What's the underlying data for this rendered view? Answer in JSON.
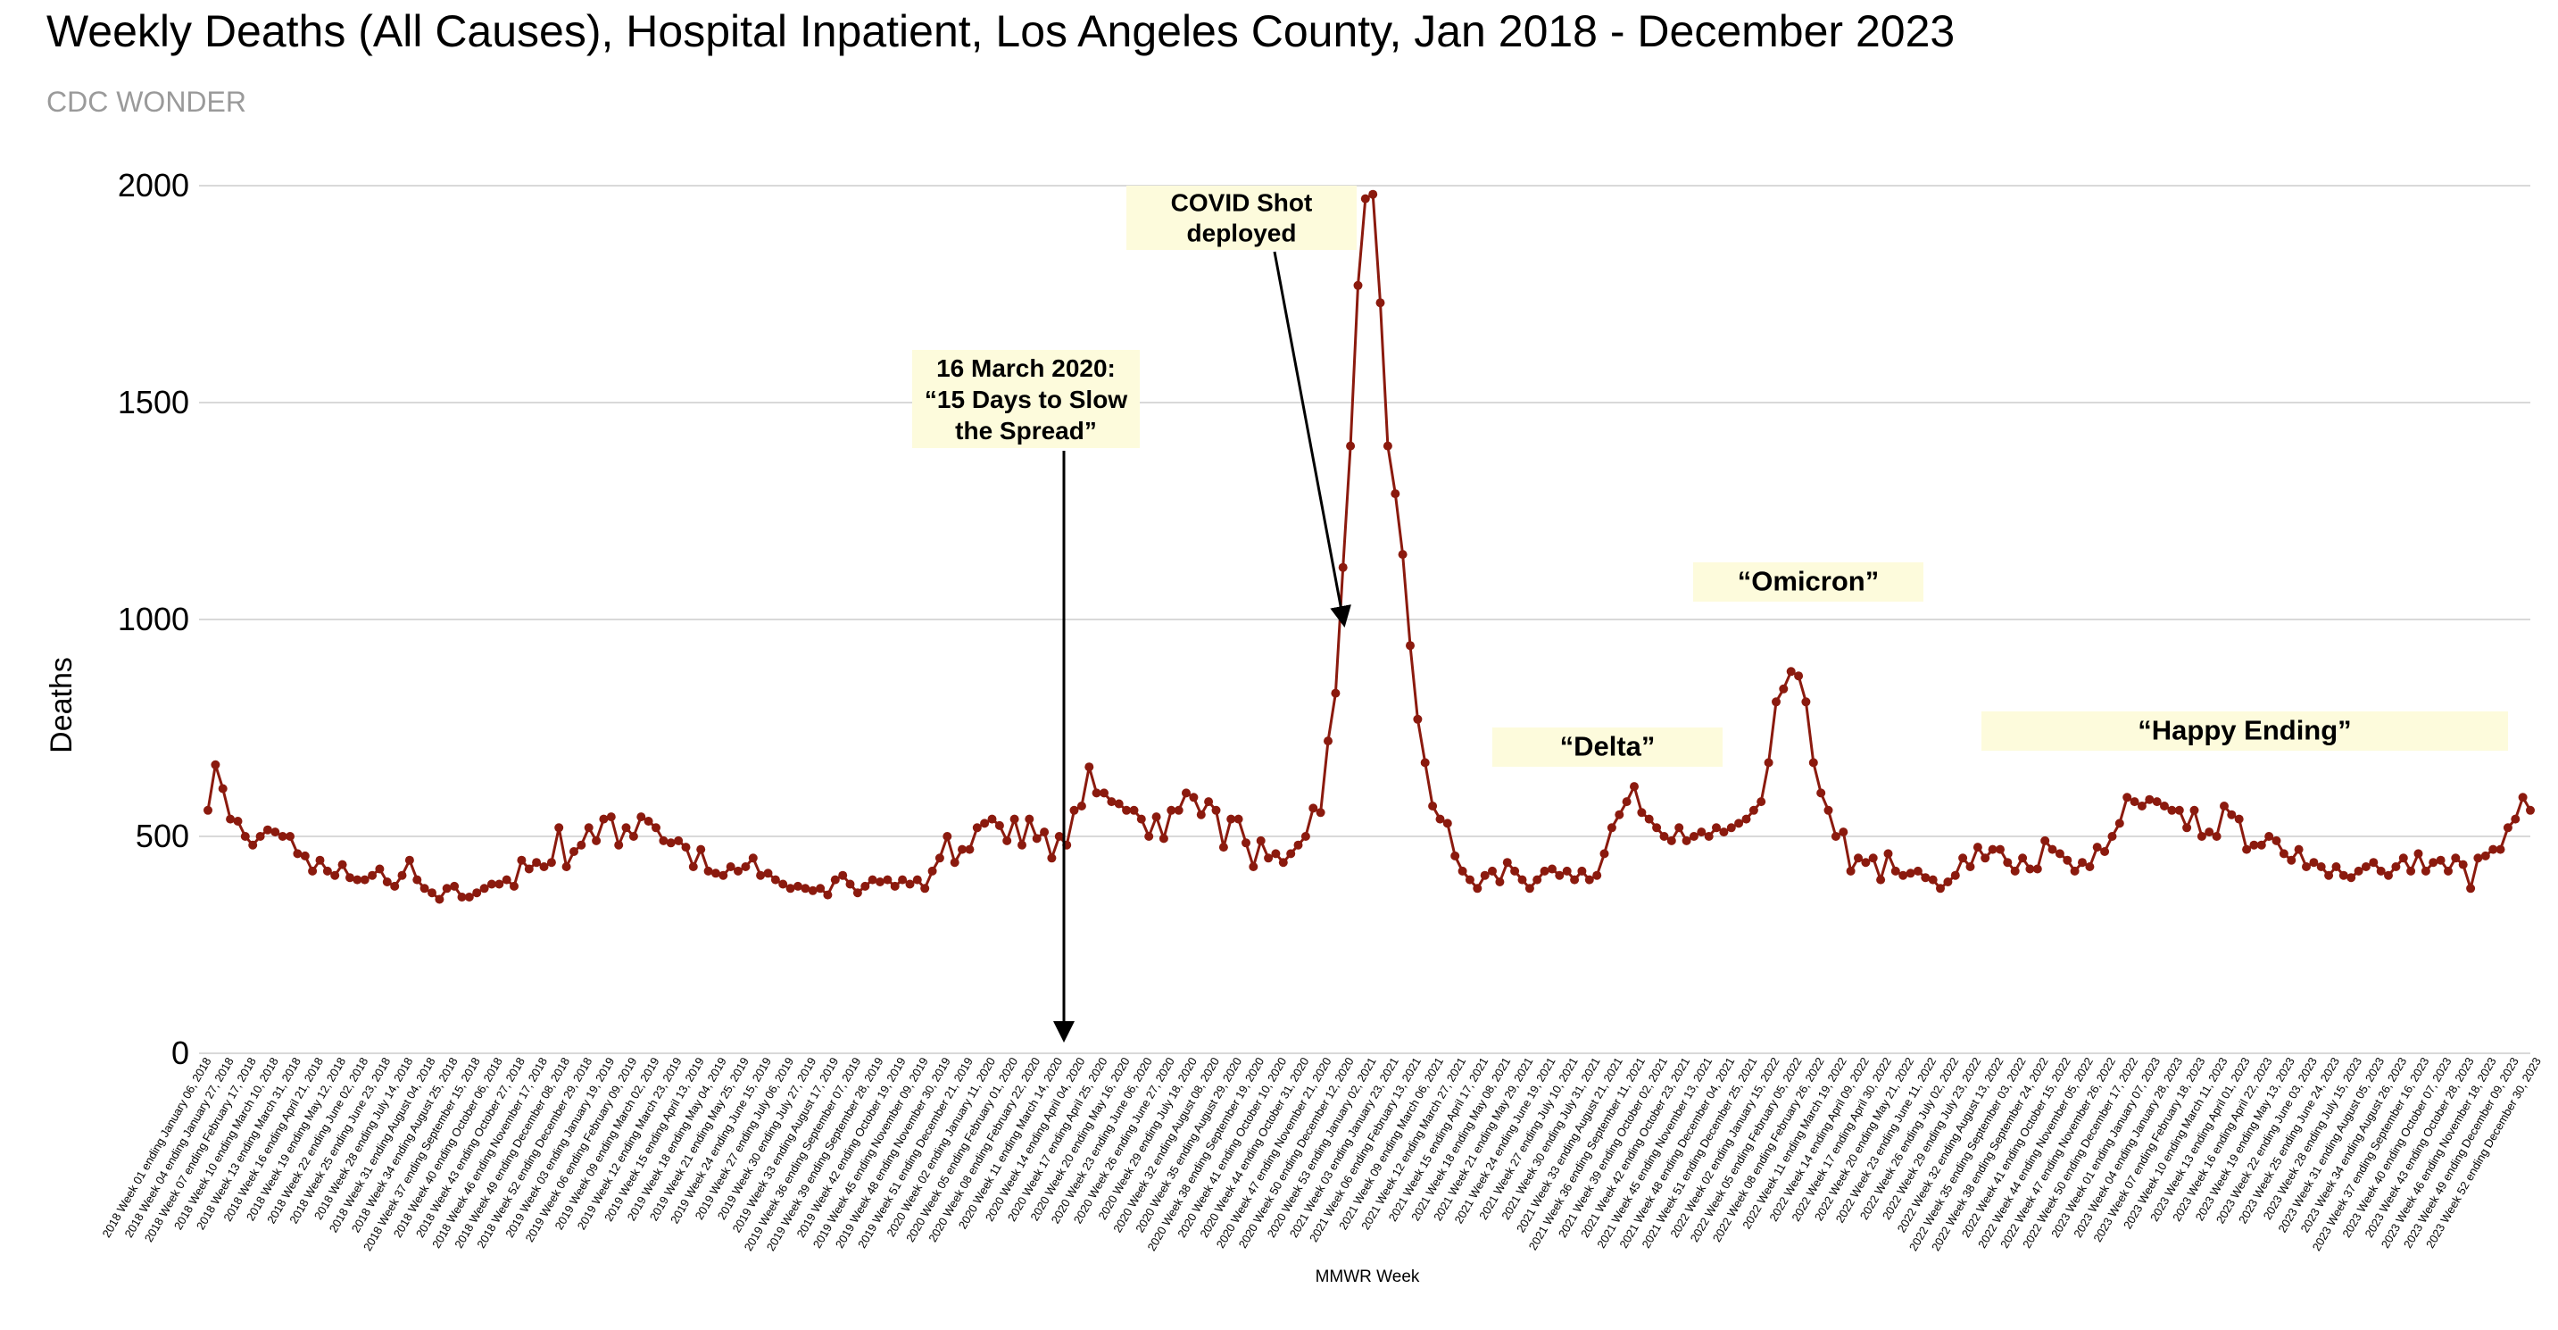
{
  "chart_data": {
    "type": "line",
    "title": "Weekly Deaths (All Causes), Hospital Inpatient, Los Angeles County, Jan 2018 - December 2023",
    "subtitle": "CDC WONDER",
    "xlabel": "MMWR Week",
    "ylabel": "Deaths",
    "ylim": [
      0,
      2000
    ],
    "yticks": [
      0,
      500,
      1000,
      1500,
      2000
    ],
    "grid": true,
    "colors": {
      "line": "#8b1a0e",
      "marker": "#8b1a0e",
      "annotation_bg": "#fdfbdc",
      "grid": "#d9d9d9"
    },
    "x_tick_labels": [
      "2018 Week 01 ending January 06, 2018",
      "2018 Week 04 ending January 27, 2018",
      "2018 Week 07 ending February 17, 2018",
      "2018 Week 10 ending March 10, 2018",
      "2018 Week 13 ending March 31, 2018",
      "2018 Week 16 ending April 21, 2018",
      "2018 Week 19 ending May 12, 2018",
      "2018 Week 22 ending June 02, 2018",
      "2018 Week 25 ending June 23, 2018",
      "2018 Week 28 ending July 14, 2018",
      "2018 Week 31 ending August 04, 2018",
      "2018 Week 34 ending August 25, 2018",
      "2018 Week 37 ending September 15, 2018",
      "2018 Week 40 ending October 06, 2018",
      "2018 Week 43 ending October 27, 2018",
      "2018 Week 46 ending November 17, 2018",
      "2018 Week 49 ending December 08, 2018",
      "2018 Week 52 ending December 29, 2018",
      "2019 Week 03 ending January 19, 2019",
      "2019 Week 06 ending February 09, 2019",
      "2019 Week 09 ending March 02, 2019",
      "2019 Week 12 ending March 23, 2019",
      "2019 Week 15 ending April 13, 2019",
      "2019 Week 18 ending May 04, 2019",
      "2019 Week 21 ending May 25, 2019",
      "2019 Week 24 ending June 15, 2019",
      "2019 Week 27 ending July 06, 2019",
      "2019 Week 30 ending July 27, 2019",
      "2019 Week 33 ending August 17, 2019",
      "2019 Week 36 ending September 07, 2019",
      "2019 Week 39 ending September 28, 2019",
      "2019 Week 42 ending October 19, 2019",
      "2019 Week 45 ending November 09, 2019",
      "2019 Week 48 ending November 30, 2019",
      "2019 Week 51 ending December 21, 2019",
      "2020 Week 02 ending January 11, 2020",
      "2020 Week 05 ending February 01, 2020",
      "2020 Week 08 ending February 22, 2020",
      "2020 Week 11 ending March 14, 2020",
      "2020 Week 14 ending April 04, 2020",
      "2020 Week 17 ending April 25, 2020",
      "2020 Week 20 ending May 16, 2020",
      "2020 Week 23 ending June 06, 2020",
      "2020 Week 26 ending June 27, 2020",
      "2020 Week 29 ending July 18, 2020",
      "2020 Week 32 ending August 08, 2020",
      "2020 Week 35 ending August 29, 2020",
      "2020 Week 38 ending September 19, 2020",
      "2020 Week 41 ending October 10, 2020",
      "2020 Week 44 ending October 31, 2020",
      "2020 Week 47 ending November 21, 2020",
      "2020 Week 50 ending December 12, 2020",
      "2020 Week 53 ending January 02, 2021",
      "2021 Week 03 ending January 23, 2021",
      "2021 Week 06 ending February 13, 2021",
      "2021 Week 09 ending March 06, 2021",
      "2021 Week 12 ending March 27, 2021",
      "2021 Week 15 ending April 17, 2021",
      "2021 Week 18 ending May 08, 2021",
      "2021 Week 21 ending May 29, 2021",
      "2021 Week 24 ending June 19, 2021",
      "2021 Week 27 ending July 10, 2021",
      "2021 Week 30 ending July 31, 2021",
      "2021 Week 33 ending August 21, 2021",
      "2021 Week 36 ending September 11, 2021",
      "2021 Week 39 ending October 02, 2021",
      "2021 Week 42 ending October 23, 2021",
      "2021 Week 45 ending November 13, 2021",
      "2021 Week 48 ending December 04, 2021",
      "2021 Week 51 ending December 25, 2021",
      "2022 Week 02 ending January 15, 2022",
      "2022 Week 05 ending February 05, 2022",
      "2022 Week 08 ending February 26, 2022",
      "2022 Week 11 ending March 19, 2022",
      "2022 Week 14 ending April 09, 2022",
      "2022 Week 17 ending April 30, 2022",
      "2022 Week 20 ending May 21, 2022",
      "2022 Week 23 ending June 11, 2022",
      "2022 Week 26 ending July 02, 2022",
      "2022 Week 29 ending July 23, 2022",
      "2022 Week 32 ending August 13, 2022",
      "2022 Week 35 ending September 03, 2022",
      "2022 Week 38 ending September 24, 2022",
      "2022 Week 41 ending October 15, 2022",
      "2022 Week 44 ending November 05, 2022",
      "2022 Week 47 ending November 26, 2022",
      "2022 Week 50 ending December 17, 2022",
      "2023 Week 01 ending January 07, 2023",
      "2023 Week 04 ending January 28, 2023",
      "2023 Week 07 ending February 18, 2023",
      "2023 Week 10 ending March 11, 2023",
      "2023 Week 13 ending April 01, 2023",
      "2023 Week 16 ending April 22, 2023",
      "2023 Week 19 ending May 13, 2023",
      "2023 Week 22 ending June 03, 2023",
      "2023 Week 25 ending June 24, 2023",
      "2023 Week 28 ending July 15, 2023",
      "2023 Week 31 ending August 05, 2023",
      "2023 Week 34 ending August 26, 2023",
      "2023 Week 37 ending September 16, 2023",
      "2023 Week 40 ending October 07, 2023",
      "2023 Week 43 ending October 28, 2023",
      "2023 Week 46 ending November 18, 2023",
      "2023 Week 49 ending December 09, 2023",
      "2023 Week 52 ending December 30, 2023"
    ],
    "series": [
      {
        "values": [
          560,
          665,
          610,
          540,
          535,
          500,
          480,
          500,
          515,
          510,
          500,
          500,
          460,
          455,
          420,
          445,
          420,
          410,
          435,
          405,
          400,
          400,
          410,
          425,
          395,
          385,
          410,
          445,
          400,
          380,
          370,
          355,
          380,
          385,
          360,
          360,
          370,
          380,
          390,
          390,
          400,
          385,
          445,
          425,
          440,
          430,
          440,
          520,
          430,
          465,
          480,
          520,
          490,
          540,
          545,
          480,
          520,
          500,
          545,
          535,
          520,
          490,
          485,
          490,
          475,
          430,
          470,
          420,
          415,
          410,
          430,
          420,
          430,
          450,
          410,
          415,
          400,
          390,
          380,
          385,
          380,
          375,
          380,
          365,
          400,
          410,
          390,
          370,
          385,
          400,
          395,
          400,
          385,
          400,
          390,
          400,
          380,
          420,
          450,
          500,
          440,
          470,
          470,
          520,
          530,
          540,
          525,
          490,
          540,
          480,
          540,
          495,
          510,
          450,
          500,
          480,
          560,
          570,
          660,
          600,
          600,
          580,
          575,
          560,
          560,
          540,
          500,
          545,
          495,
          560,
          560,
          600,
          590,
          550,
          580,
          560,
          475,
          540,
          540,
          485,
          430,
          490,
          450,
          460,
          440,
          460,
          480,
          500,
          565,
          555,
          720,
          830,
          1120,
          1400,
          1770,
          1970,
          1980,
          1730,
          1400,
          1290,
          1150,
          940,
          770,
          670,
          570,
          540,
          530,
          455,
          420,
          400,
          380,
          410,
          420,
          395,
          440,
          420,
          400,
          380,
          400,
          420,
          425,
          410,
          420,
          400,
          420,
          400,
          410,
          460,
          520,
          550,
          580,
          615,
          555,
          540,
          520,
          500,
          490,
          520,
          490,
          500,
          510,
          500,
          520,
          510,
          520,
          530,
          540,
          560,
          580,
          670,
          810,
          840,
          880,
          870,
          810,
          670,
          600,
          560,
          500,
          510,
          420,
          450,
          440,
          450,
          400,
          460,
          420,
          410,
          415,
          420,
          405,
          400,
          380,
          395,
          410,
          450,
          430,
          475,
          450,
          470,
          470,
          440,
          420,
          450,
          425,
          425,
          490,
          470,
          460,
          445,
          420,
          440,
          430,
          475,
          465,
          500,
          530,
          590,
          580,
          570,
          585,
          580,
          570,
          560,
          560,
          520,
          560,
          500,
          510,
          500,
          570,
          550,
          540,
          470,
          480,
          480,
          500,
          490,
          460,
          445,
          470,
          430,
          440,
          430,
          410,
          430,
          410,
          405,
          420,
          430,
          440,
          420,
          410,
          430,
          450,
          420,
          460,
          420,
          440,
          445,
          420,
          450,
          435,
          380,
          450,
          455,
          470,
          470,
          520,
          540,
          590,
          560
        ]
      }
    ],
    "annotations": [
      {
        "id": "lockdown",
        "lines": [
          "16 March 2020:",
          "“15 Days to Slow",
          "the Spread”"
        ],
        "arrow": true
      },
      {
        "id": "covid-shot",
        "lines": [
          "COVID Shot",
          "deployed"
        ],
        "arrow": true
      },
      {
        "id": "delta",
        "lines": [
          "“Delta”"
        ],
        "arrow": false
      },
      {
        "id": "omicron",
        "lines": [
          "“Omicron”"
        ],
        "arrow": false
      },
      {
        "id": "happy-ending",
        "lines": [
          "“Happy Ending”"
        ],
        "arrow": false
      }
    ]
  }
}
